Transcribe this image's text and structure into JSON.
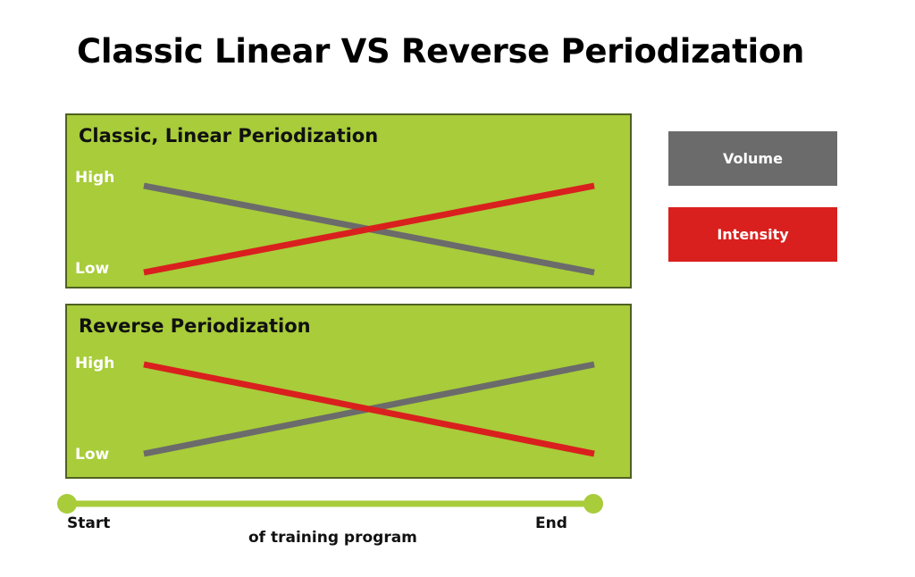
{
  "title": "Classic Linear VS Reverse Periodization",
  "colors": {
    "volume": "#6b6b6b",
    "intensity": "#d9201e",
    "panel": "#a8cc3a",
    "timeline": "#a8cc3a"
  },
  "legend": {
    "volume": "Volume",
    "intensity": "Intensity"
  },
  "timeline": {
    "start": "Start",
    "end": "End",
    "caption": "of training program"
  },
  "chart_data": [
    {
      "type": "line",
      "title": "Classic, Linear Periodization",
      "x": [
        "Start",
        "End"
      ],
      "ytick_labels": [
        "High",
        "Low"
      ],
      "ylim": [
        "Low",
        "High"
      ],
      "series": [
        {
          "name": "Volume",
          "values": [
            "High",
            "Low"
          ],
          "color": "#6b6b6b"
        },
        {
          "name": "Intensity",
          "values": [
            "Low",
            "High"
          ],
          "color": "#d9201e"
        }
      ]
    },
    {
      "type": "line",
      "title": "Reverse Periodization",
      "x": [
        "Start",
        "End"
      ],
      "ytick_labels": [
        "High",
        "Low"
      ],
      "ylim": [
        "Low",
        "High"
      ],
      "series": [
        {
          "name": "Volume",
          "values": [
            "Low",
            "High"
          ],
          "color": "#6b6b6b"
        },
        {
          "name": "Intensity",
          "values": [
            "High",
            "Low"
          ],
          "color": "#d9201e"
        }
      ]
    }
  ]
}
